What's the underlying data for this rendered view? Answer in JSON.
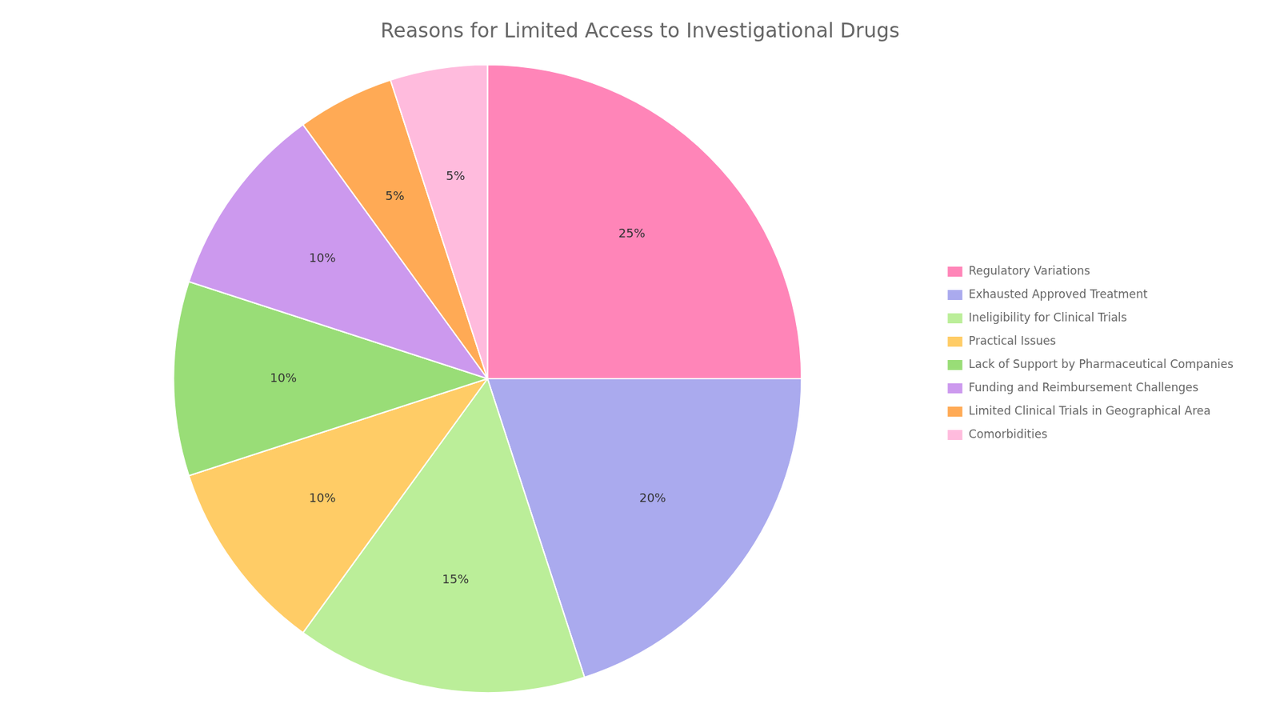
{
  "chart_data": {
    "type": "pie",
    "title": "Reasons for Limited Access to Investigational Drugs",
    "categories": [
      "Regulatory Variations",
      "Exhausted Approved Treatment",
      "Ineligibility for Clinical Trials",
      "Practical Issues",
      "Lack of Support by Pharmaceutical Companies",
      "Funding and Reimbursement Challenges",
      "Limited Clinical Trials in Geographical Area",
      "Comorbidities"
    ],
    "values": [
      25,
      20,
      15,
      10,
      10,
      10,
      5,
      5
    ],
    "value_labels": [
      "25%",
      "20%",
      "15%",
      "10%",
      "10%",
      "10%",
      "5%",
      "5%"
    ],
    "colors": [
      "#FF85B8",
      "#AAAAEE",
      "#BBEE99",
      "#FFCC66",
      "#99DD77",
      "#CC99EE",
      "#FFAA55",
      "#FFBBDD"
    ],
    "legend": "right",
    "data_labels": true
  }
}
